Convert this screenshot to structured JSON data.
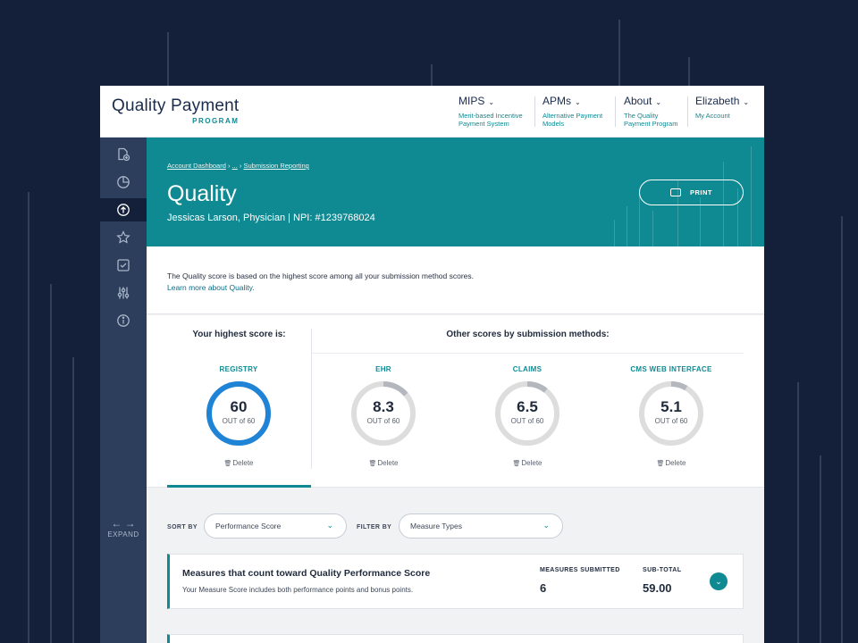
{
  "header": {
    "logo_main": "Quality Payment",
    "logo_sub": "PROGRAM",
    "nav": [
      {
        "label": "MIPS",
        "sub1": "Merit-based Incentive",
        "sub2": "Payment System"
      },
      {
        "label": "APMs",
        "sub1": "Alternative Payment",
        "sub2": "Models"
      },
      {
        "label": "About",
        "sub1": "The Quality",
        "sub2": "Payment Program"
      },
      {
        "label": "Elizabeth",
        "sub1": "My Account",
        "sub2": ""
      }
    ]
  },
  "sidebar": {
    "items": [
      "add-document-icon",
      "pie-chart-icon",
      "upload-icon",
      "star-icon",
      "checklist-icon",
      "sliders-icon",
      "info-icon"
    ],
    "active_index": 2,
    "expand_label": "EXPAND"
  },
  "hero": {
    "breadcrumb": [
      "Account Dashboard",
      "...",
      "Submission Reporting"
    ],
    "title": "Quality",
    "subtitle": "Jessicas Larson, Physician | NPI: #1239768024",
    "print_label": "PRINT"
  },
  "intro": {
    "text": "The Quality score is based on the highest score among all your submission method scores.",
    "link": "Learn more about Quality."
  },
  "scores": {
    "highest_heading": "Your highest score is:",
    "other_heading": "Other scores by submission methods:",
    "out_of_text": "OUT of 60",
    "delete_label": "Delete",
    "items": [
      {
        "method": "REGISTRY",
        "score": "60",
        "fraction": 1.0,
        "highlight": true
      },
      {
        "method": "EHR",
        "score": "8.3",
        "fraction": 0.138,
        "highlight": false
      },
      {
        "method": "CLAIMS",
        "score": "6.5",
        "fraction": 0.108,
        "highlight": false
      },
      {
        "method": "CMS WEB INTERFACE",
        "score": "5.1",
        "fraction": 0.085,
        "highlight": false
      }
    ]
  },
  "filters": {
    "sort_label": "SORT BY",
    "sort_value": "Performance Score",
    "filter_label": "FILTER BY",
    "filter_value": "Measure Types"
  },
  "measures_card": {
    "title": "Measures that count toward Quality Performance Score",
    "subtitle": "Your Measure Score includes both performance points and bonus points.",
    "submitted_label": "MEASURES SUBMITTED",
    "submitted_value": "6",
    "subtotal_label": "SUB-TOTAL",
    "subtotal_value": "59.00"
  },
  "colors": {
    "teal": "#0f8a92",
    "navy": "#14203a",
    "sidebar": "#2c3e5c",
    "ring_blue": "#1f83d6",
    "ring_gray": "#dddddd"
  }
}
